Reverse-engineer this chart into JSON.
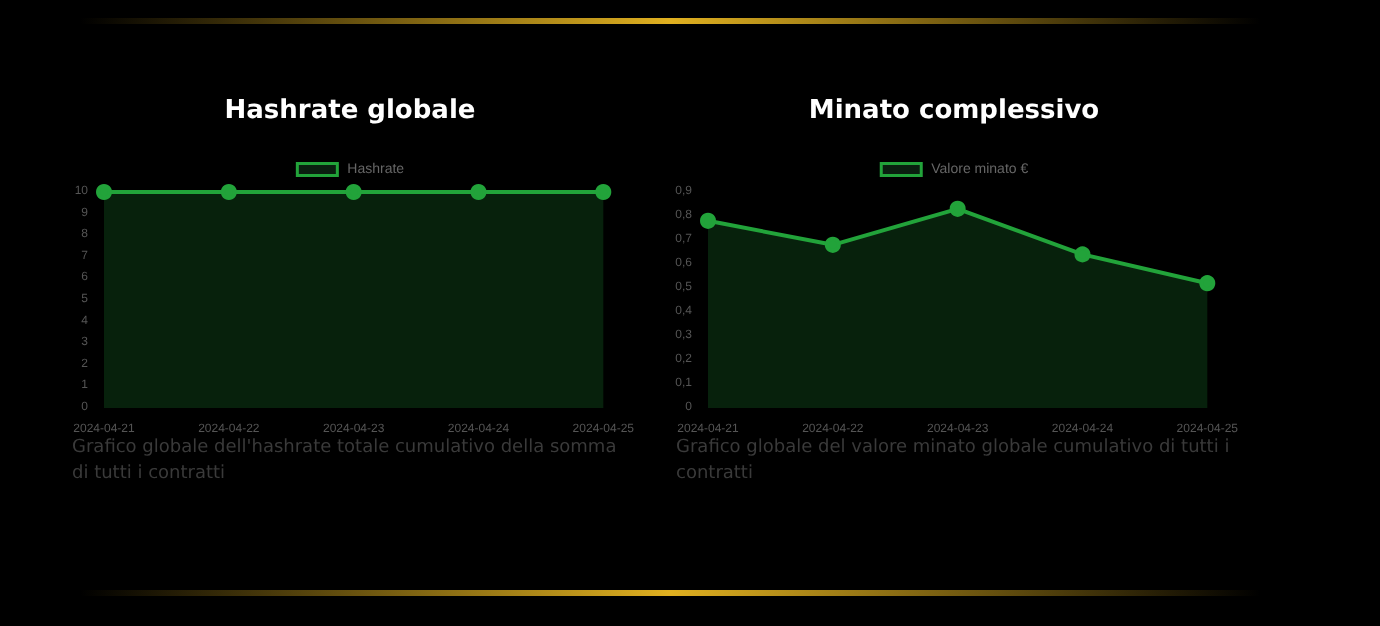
{
  "chart_data": [
    {
      "type": "area",
      "title": "Hashrate globale",
      "categories": [
        "2024-04-21",
        "2024-04-22",
        "2024-04-23",
        "2024-04-24",
        "2024-04-25"
      ],
      "series": [
        {
          "name": "Hashrate",
          "color": "#22a33a",
          "values": [
            10,
            10,
            10,
            10,
            10
          ]
        }
      ],
      "ylim": [
        0,
        10
      ],
      "yticks": [
        0,
        1,
        2,
        3,
        4,
        5,
        6,
        7,
        8,
        9,
        10
      ],
      "marker": "circle",
      "legend": "top",
      "grid": false,
      "annotations": [
        "Grafico globale dell'hashrate totale cumulativo della somma di tutti i contratti"
      ]
    },
    {
      "type": "area",
      "title": "Minato complessivo",
      "categories": [
        "2024-04-21",
        "2024-04-22",
        "2024-04-23",
        "2024-04-24",
        "2024-04-25"
      ],
      "series": [
        {
          "name": "Valore minato €",
          "color": "#22a33a",
          "values": [
            0.78,
            0.68,
            0.83,
            0.64,
            0.52
          ]
        }
      ],
      "ylim": [
        0,
        0.9
      ],
      "yticks": [
        0,
        {
          "value": 0.1,
          "label": "0,1"
        },
        {
          "value": 0.2,
          "label": "0,2"
        },
        {
          "value": 0.3,
          "label": "0,3"
        },
        {
          "value": 0.4,
          "label": "0,4"
        },
        {
          "value": 0.5,
          "label": "0,5"
        },
        {
          "value": 0.6,
          "label": "0,6"
        },
        {
          "value": 0.7,
          "label": "0,7"
        },
        {
          "value": 0.8,
          "label": "0,8"
        },
        {
          "value": 0.9,
          "label": "0,9"
        }
      ],
      "marker": "circle",
      "legend": "top",
      "grid": false,
      "annotations": [
        "Grafico globale del valore minato globale cumulativo di tutti i contratti"
      ]
    }
  ]
}
